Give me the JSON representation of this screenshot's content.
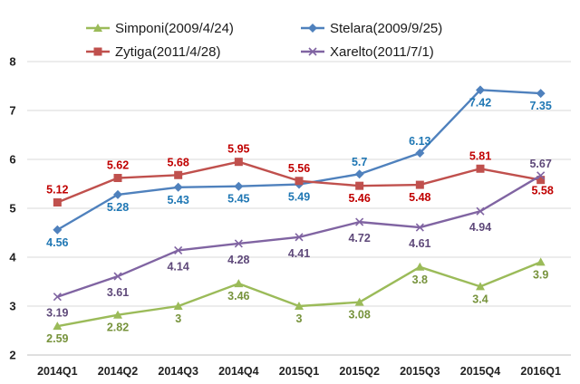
{
  "chart_data": {
    "type": "line",
    "title": "",
    "xlabel": "",
    "ylabel": "",
    "ylim": [
      2,
      8
    ],
    "yticks": [
      2,
      3,
      4,
      5,
      6,
      7,
      8
    ],
    "grid": true,
    "legend_position": "top",
    "categories": [
      "2014Q1",
      "2014Q2",
      "2014Q3",
      "2014Q4",
      "2015Q1",
      "2015Q2",
      "2015Q3",
      "2015Q4",
      "2016Q1"
    ],
    "series": [
      {
        "name": "Simponi(2009/4/24)",
        "color": "#9bbb59",
        "marker": "triangle",
        "values": [
          2.59,
          2.82,
          3,
          3.46,
          3,
          3.08,
          3.8,
          3.4,
          3.9
        ],
        "labels": [
          "2.59",
          "2.82",
          "3",
          "3.46",
          "3",
          "3.08",
          "3.8",
          "3.4",
          "3.9"
        ],
        "label_color": "#77933c"
      },
      {
        "name": "Stelara(2009/9/25)",
        "color": "#4f81bd",
        "marker": "diamond",
        "values": [
          4.56,
          5.28,
          5.43,
          5.45,
          5.49,
          5.7,
          6.13,
          7.42,
          7.35
        ],
        "labels": [
          "4.56",
          "5.28",
          "5.43",
          "5.45",
          "5.49",
          "5.7",
          "6.13",
          "7.42",
          "7.35"
        ],
        "label_color": "#1f77b4"
      },
      {
        "name": "Zytiga(2011/4/28)",
        "color": "#c0504d",
        "marker": "square",
        "values": [
          5.12,
          5.62,
          5.68,
          5.95,
          5.56,
          5.46,
          5.48,
          5.81,
          5.58
        ],
        "labels": [
          "5.12",
          "5.62",
          "5.68",
          "5.95",
          "5.56",
          "5.46",
          "5.48",
          "5.81",
          "5.58"
        ],
        "label_color": "#c00000"
      },
      {
        "name": "Xarelto(2011/7/1)",
        "color": "#8064a2",
        "marker": "x",
        "values": [
          3.19,
          3.61,
          4.14,
          4.28,
          4.41,
          4.72,
          4.61,
          4.94,
          5.67
        ],
        "labels": [
          "3.19",
          "3.61",
          "4.14",
          "4.28",
          "4.41",
          "4.72",
          "4.61",
          "4.94",
          "5.67"
        ],
        "label_color": "#5f497a"
      }
    ]
  }
}
